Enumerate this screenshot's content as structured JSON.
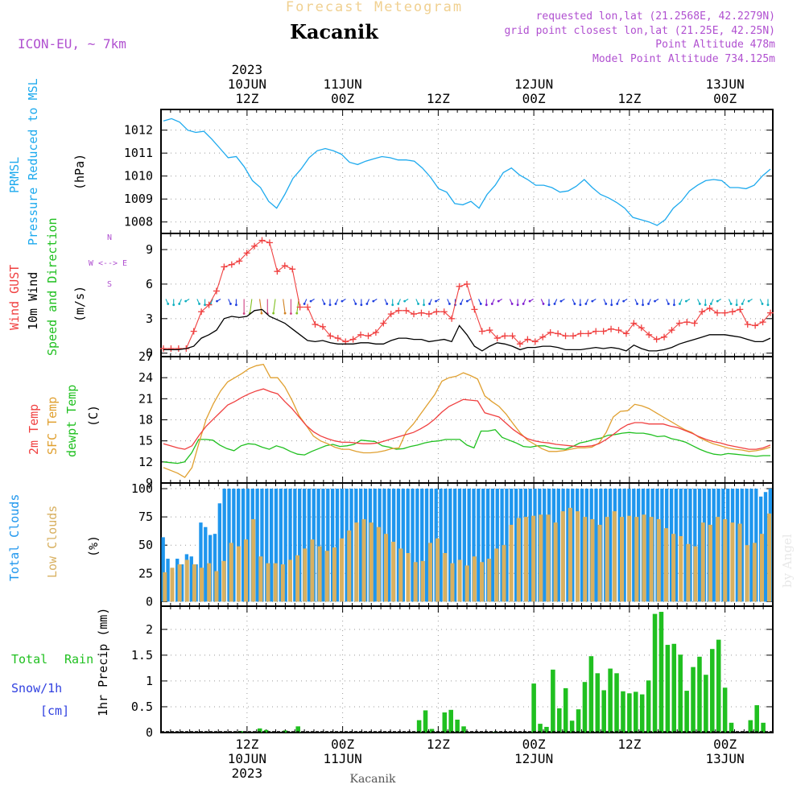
{
  "header": {
    "product": "Forecast Meteogram",
    "location": "Kacanik",
    "model": "ICON-EU, ~ 7km",
    "requested": "requested lon,lat (21.2568E, 42.2279N)",
    "grid_point": "grid point closest lon,lat (21.25E, 42.25N)",
    "point_altitude": "Point Altitude 478m",
    "model_altitude": "Model Point Altitude 734.125m",
    "footer_location": "Kacanik",
    "watermark": "by Angel"
  },
  "colors": {
    "pressure": "#1eaaee",
    "gust": "#f04040",
    "wind": "#000000",
    "temp2m": "#f04040",
    "sfc": "#e0a030",
    "dewpt": "#20c020",
    "total_clouds": "#1e96ee",
    "low_clouds": "#d8b060",
    "rain": "#20c020",
    "purple": "#b050d0",
    "axis": "#000000"
  },
  "time_axis": {
    "start_hour": 0,
    "end_hour": 64,
    "top_ticks": [
      {
        "hour": 9,
        "lines": [
          "2023",
          "10JUN",
          "12Z"
        ]
      },
      {
        "hour": 19,
        "lines": [
          "11JUN",
          "00Z"
        ]
      },
      {
        "hour": 29,
        "lines": [
          "12Z"
        ]
      },
      {
        "hour": 39,
        "lines": [
          "12JUN",
          "00Z"
        ]
      },
      {
        "hour": 49,
        "lines": [
          "12Z"
        ]
      },
      {
        "hour": 59,
        "lines": [
          "13JUN",
          "00Z"
        ]
      }
    ],
    "bottom_ticks": [
      {
        "hour": 9,
        "lines": [
          "12Z",
          "10JUN",
          "2023"
        ]
      },
      {
        "hour": 19,
        "lines": [
          "00Z",
          "11JUN"
        ]
      },
      {
        "hour": 29,
        "lines": [
          "12Z"
        ]
      },
      {
        "hour": 39,
        "lines": [
          "00Z",
          "12JUN"
        ]
      },
      {
        "hour": 49,
        "lines": [
          "12Z"
        ]
      },
      {
        "hour": 59,
        "lines": [
          "00Z",
          "13JUN"
        ]
      }
    ]
  },
  "chart_data": [
    {
      "type": "line",
      "panel": "pressure",
      "ylabel_left": [
        "PRMSL",
        "Pressure Reduced to MSL"
      ],
      "unit": "(hPa)",
      "ylim": [
        1007.5,
        1012.9
      ],
      "yticks": [
        1008,
        1009,
        1010,
        1011,
        1012
      ],
      "series": [
        {
          "name": "PRMSL",
          "values": [
            1012.4,
            1012.5,
            1012.35,
            1012.0,
            1011.9,
            1011.95,
            1011.6,
            1011.2,
            1010.8,
            1010.85,
            1010.4,
            1009.8,
            1009.5,
            1008.9,
            1008.6,
            1009.2,
            1009.9,
            1010.3,
            1010.8,
            1011.1,
            1011.2,
            1011.1,
            1010.95,
            1010.6,
            1010.5,
            1010.65,
            1010.75,
            1010.85,
            1010.8,
            1010.7,
            1010.7,
            1010.65,
            1010.35,
            1009.95,
            1009.45,
            1009.3,
            1008.8,
            1008.75,
            1008.9,
            1008.6,
            1009.2,
            1009.6,
            1010.15,
            1010.35,
            1010.05,
            1009.85,
            1009.6,
            1009.6,
            1009.5,
            1009.3,
            1009.35,
            1009.55,
            1009.85,
            1009.5,
            1009.2,
            1009.05,
            1008.85,
            1008.6,
            1008.2,
            1008.1,
            1008.0,
            1007.85,
            1008.1,
            1008.6,
            1008.9,
            1009.35,
            1009.6,
            1009.8,
            1009.85,
            1009.8,
            1009.5,
            1009.5,
            1009.45,
            1009.6,
            1010.0,
            1010.3
          ]
        }
      ]
    },
    {
      "type": "line",
      "panel": "wind",
      "ylabel_left": [
        "Wind GUST",
        "10m Wind",
        "Speed and Direction"
      ],
      "unit": "(m/s)",
      "compass": [
        "N",
        "W <--> E",
        "S"
      ],
      "ylim": [
        -0.3,
        10.4
      ],
      "yticks": [
        0,
        3,
        6,
        9
      ],
      "series": [
        {
          "name": "Wind GUST",
          "values": [
            0.4,
            0.4,
            0.4,
            0.4,
            1.9,
            3.6,
            4.2,
            5.4,
            7.5,
            7.7,
            8.0,
            8.7,
            9.3,
            9.8,
            9.6,
            7.1,
            7.6,
            7.3,
            4.0,
            4.0,
            2.5,
            2.3,
            1.5,
            1.3,
            1.0,
            1.2,
            1.6,
            1.5,
            1.8,
            2.6,
            3.4,
            3.7,
            3.7,
            3.4,
            3.5,
            3.4,
            3.6,
            3.6,
            3.0,
            5.8,
            6.0,
            3.8,
            1.9,
            2.0,
            1.3,
            1.5,
            1.5,
            0.8,
            1.2,
            1.0,
            1.4,
            1.8,
            1.7,
            1.5,
            1.5,
            1.7,
            1.7,
            1.9,
            1.9,
            2.1,
            2.0,
            1.7,
            2.6,
            2.2,
            1.6,
            1.2,
            1.4,
            2.0,
            2.6,
            2.7,
            2.6,
            3.6,
            3.9,
            3.5,
            3.5,
            3.6,
            3.8,
            2.5,
            2.4,
            2.7,
            3.5
          ]
        },
        {
          "name": "10m Wind",
          "values": [
            0.3,
            0.3,
            0.3,
            0.4,
            0.6,
            1.3,
            1.6,
            2.0,
            3.0,
            3.2,
            3.1,
            3.2,
            3.7,
            3.8,
            3.2,
            2.9,
            2.6,
            2.1,
            1.6,
            1.1,
            1.0,
            1.1,
            0.9,
            0.8,
            0.8,
            0.8,
            0.9,
            0.9,
            0.8,
            0.8,
            1.1,
            1.3,
            1.3,
            1.2,
            1.2,
            1.0,
            1.1,
            1.2,
            1.0,
            2.4,
            1.6,
            0.6,
            0.2,
            0.6,
            0.9,
            0.8,
            0.6,
            0.3,
            0.5,
            0.5,
            0.6,
            0.6,
            0.5,
            0.3,
            0.3,
            0.3,
            0.4,
            0.5,
            0.4,
            0.5,
            0.4,
            0.2,
            0.7,
            0.4,
            0.2,
            0.2,
            0.3,
            0.5,
            0.8,
            1.0,
            1.2,
            1.4,
            1.6,
            1.6,
            1.6,
            1.5,
            1.4,
            1.2,
            1.0,
            1.0,
            1.3
          ]
        }
      ]
    },
    {
      "type": "line",
      "panel": "temperature",
      "ylabel_left": [
        "2m Temp",
        "SFC Temp",
        "dewpt Temp"
      ],
      "unit": "(C)",
      "ylim": [
        9,
        27
      ],
      "yticks": [
        9,
        12,
        15,
        18,
        21,
        24,
        27
      ],
      "series": [
        {
          "name": "2m Temp",
          "values": [
            14.6,
            14.3,
            14.0,
            13.8,
            14.3,
            15.8,
            17.1,
            18.1,
            19.1,
            20.1,
            20.6,
            21.2,
            21.7,
            22.1,
            22.4,
            22.0,
            21.7,
            20.6,
            19.6,
            18.4,
            17.2,
            16.3,
            15.7,
            15.3,
            15.0,
            14.8,
            14.8,
            14.7,
            14.6,
            14.6,
            14.7,
            15.0,
            15.3,
            15.6,
            15.9,
            16.2,
            16.7,
            17.3,
            18.1,
            19.1,
            19.9,
            20.4,
            20.9,
            20.8,
            20.7,
            19.0,
            18.7,
            18.4,
            17.5,
            16.6,
            15.9,
            15.3,
            15.0,
            14.8,
            14.7,
            14.5,
            14.4,
            14.3,
            14.2,
            14.2,
            14.3,
            14.6,
            15.2,
            15.9,
            16.7,
            17.3,
            17.6,
            17.6,
            17.4,
            17.4,
            17.4,
            17.1,
            16.9,
            16.5,
            16.1,
            15.6,
            15.2,
            14.9,
            14.7,
            14.4,
            14.2,
            14.0,
            13.8,
            13.8,
            14.0,
            14.4
          ]
        },
        {
          "name": "SFC Temp",
          "values": [
            11.2,
            10.8,
            10.4,
            9.8,
            11.2,
            14.8,
            18.1,
            20.3,
            22.1,
            23.4,
            24.0,
            24.6,
            25.3,
            25.7,
            25.9,
            24.0,
            24.0,
            22.7,
            20.8,
            18.6,
            17.2,
            15.7,
            15.0,
            14.6,
            14.1,
            13.8,
            13.8,
            13.5,
            13.3,
            13.3,
            13.4,
            13.6,
            13.9,
            14.0,
            16.3,
            17.4,
            18.8,
            20.2,
            21.6,
            23.5,
            24.0,
            24.2,
            24.7,
            24.3,
            23.8,
            21.4,
            20.6,
            19.9,
            18.8,
            17.4,
            16.1,
            15.1,
            14.5,
            13.9,
            13.5,
            13.5,
            13.6,
            13.8,
            14.0,
            14.0,
            14.1,
            14.7,
            16.2,
            18.4,
            19.2,
            19.3,
            20.2,
            20.0,
            19.6,
            19.0,
            18.4,
            17.8,
            17.2,
            16.6,
            16.2,
            15.5,
            15.0,
            14.6,
            14.3,
            14.0,
            13.8,
            13.7,
            13.5,
            13.6,
            13.8,
            14.1
          ]
        },
        {
          "name": "dewpt Temp",
          "values": [
            12.0,
            11.9,
            11.8,
            12.0,
            13.3,
            15.2,
            15.2,
            15.1,
            14.4,
            13.9,
            13.6,
            14.3,
            14.6,
            14.5,
            14.1,
            13.8,
            14.3,
            14.0,
            13.5,
            13.1,
            13.0,
            13.5,
            13.9,
            14.3,
            14.5,
            14.2,
            14.3,
            14.5,
            15.1,
            15.0,
            14.9,
            14.3,
            14.1,
            13.8,
            13.9,
            14.2,
            14.4,
            14.7,
            14.9,
            15.0,
            15.2,
            15.2,
            15.2,
            14.4,
            14.0,
            16.4,
            16.4,
            16.6,
            15.5,
            15.1,
            14.7,
            14.2,
            14.1,
            14.3,
            14.3,
            14.0,
            13.9,
            13.8,
            14.2,
            14.7,
            14.9,
            15.2,
            15.4,
            15.8,
            15.9,
            16.1,
            16.2,
            16.1,
            16.1,
            15.9,
            15.6,
            15.7,
            15.3,
            15.1,
            14.8,
            14.3,
            13.8,
            13.4,
            13.1,
            13.0,
            13.2,
            13.1,
            13.0,
            12.9,
            12.8,
            12.9,
            12.9
          ]
        }
      ]
    },
    {
      "type": "bar",
      "panel": "clouds",
      "ylabel_left": [
        "Total Clouds",
        "Low Clouds"
      ],
      "unit": "(%)",
      "ylim": [
        -4,
        105
      ],
      "yticks": [
        0,
        25,
        50,
        75,
        100
      ],
      "series": [
        {
          "name": "Total Clouds",
          "values": [
            57,
            38,
            26,
            38,
            33,
            42,
            40,
            33,
            70,
            66,
            59,
            60,
            87,
            100,
            100,
            100,
            100,
            100,
            100,
            100,
            100,
            100,
            100,
            100,
            100,
            100,
            100,
            100,
            100,
            100,
            100,
            100,
            100,
            100,
            100,
            100,
            100,
            100,
            100,
            100,
            100,
            100,
            100,
            100,
            100,
            100,
            100,
            100,
            100,
            100,
            100,
            100,
            100,
            100,
            100,
            100,
            100,
            100,
            100,
            100,
            100,
            100,
            100,
            100,
            100,
            100,
            100,
            100,
            100,
            100,
            100,
            100,
            100,
            100,
            100,
            100,
            100,
            100,
            100,
            100,
            100,
            100,
            100,
            100,
            100,
            100,
            100,
            100,
            100,
            100,
            100,
            100,
            100,
            100,
            100,
            100,
            100,
            100,
            100,
            100,
            100,
            100,
            100,
            100,
            100,
            100,
            100,
            100,
            100,
            100,
            100,
            100,
            100,
            100,
            100,
            100,
            100,
            100,
            100,
            100,
            100,
            100,
            100,
            100,
            100,
            100,
            100,
            93,
            97,
            100
          ]
        },
        {
          "name": "Low Clouds",
          "values": [
            26,
            30,
            33,
            37,
            33,
            30,
            34,
            27,
            36,
            52,
            49,
            55,
            73,
            40,
            34,
            34,
            33,
            37,
            41,
            47,
            55,
            49,
            45,
            48,
            56,
            63,
            70,
            73,
            70,
            66,
            60,
            53,
            47,
            43,
            35,
            36,
            52,
            56,
            43,
            34,
            37,
            32,
            40,
            35,
            38,
            47,
            50,
            68,
            74,
            75,
            76,
            77,
            77,
            70,
            80,
            83,
            80,
            75,
            73,
            68,
            75,
            80,
            75,
            76,
            75,
            77,
            75,
            73,
            65,
            60,
            58,
            51,
            49,
            70,
            68,
            75,
            73,
            70,
            69,
            50,
            52,
            60,
            78
          ]
        }
      ]
    },
    {
      "type": "bar",
      "panel": "precip",
      "ylabel_left": [
        "Total Rain",
        "Snow/1h",
        "[cm]"
      ],
      "unit": "1hr Precip (mm)",
      "ylim": [
        0,
        2.45
      ],
      "yticks": [
        0,
        0.5,
        1,
        1.5,
        2
      ],
      "ytick_labels": [
        "0",
        "0.5",
        "1",
        "1.5",
        "2"
      ],
      "series": [
        {
          "name": "Total Rain",
          "values": [
            0,
            0,
            0,
            0,
            0,
            0,
            0,
            0,
            0,
            0,
            0,
            0,
            0.03,
            0,
            0,
            0.08,
            0.05,
            0,
            0,
            0.04,
            0,
            0.12,
            0,
            0,
            0,
            0,
            0,
            0,
            0,
            0,
            0,
            0,
            0,
            0,
            0,
            0,
            0,
            0,
            0,
            0,
            0.24,
            0.43,
            0.07,
            0,
            0.39,
            0.44,
            0.25,
            0.12,
            0,
            0,
            0,
            0,
            0.01,
            0,
            0,
            0,
            0,
            0,
            0.95,
            0.17,
            0.11,
            1.22,
            0.47,
            0.86,
            0.23,
            0.45,
            0.98,
            1.48,
            1.15,
            0.82,
            1.24,
            1.15,
            0.8,
            0.76,
            0.79,
            0.74,
            1.01,
            2.3,
            2.34,
            1.7,
            1.72,
            1.51,
            0.81,
            1.27,
            1.47,
            1.12,
            1.62,
            1.8,
            0.87,
            0.19,
            0,
            0,
            0.24,
            0.53,
            0.19,
            0
          ]
        }
      ]
    }
  ]
}
